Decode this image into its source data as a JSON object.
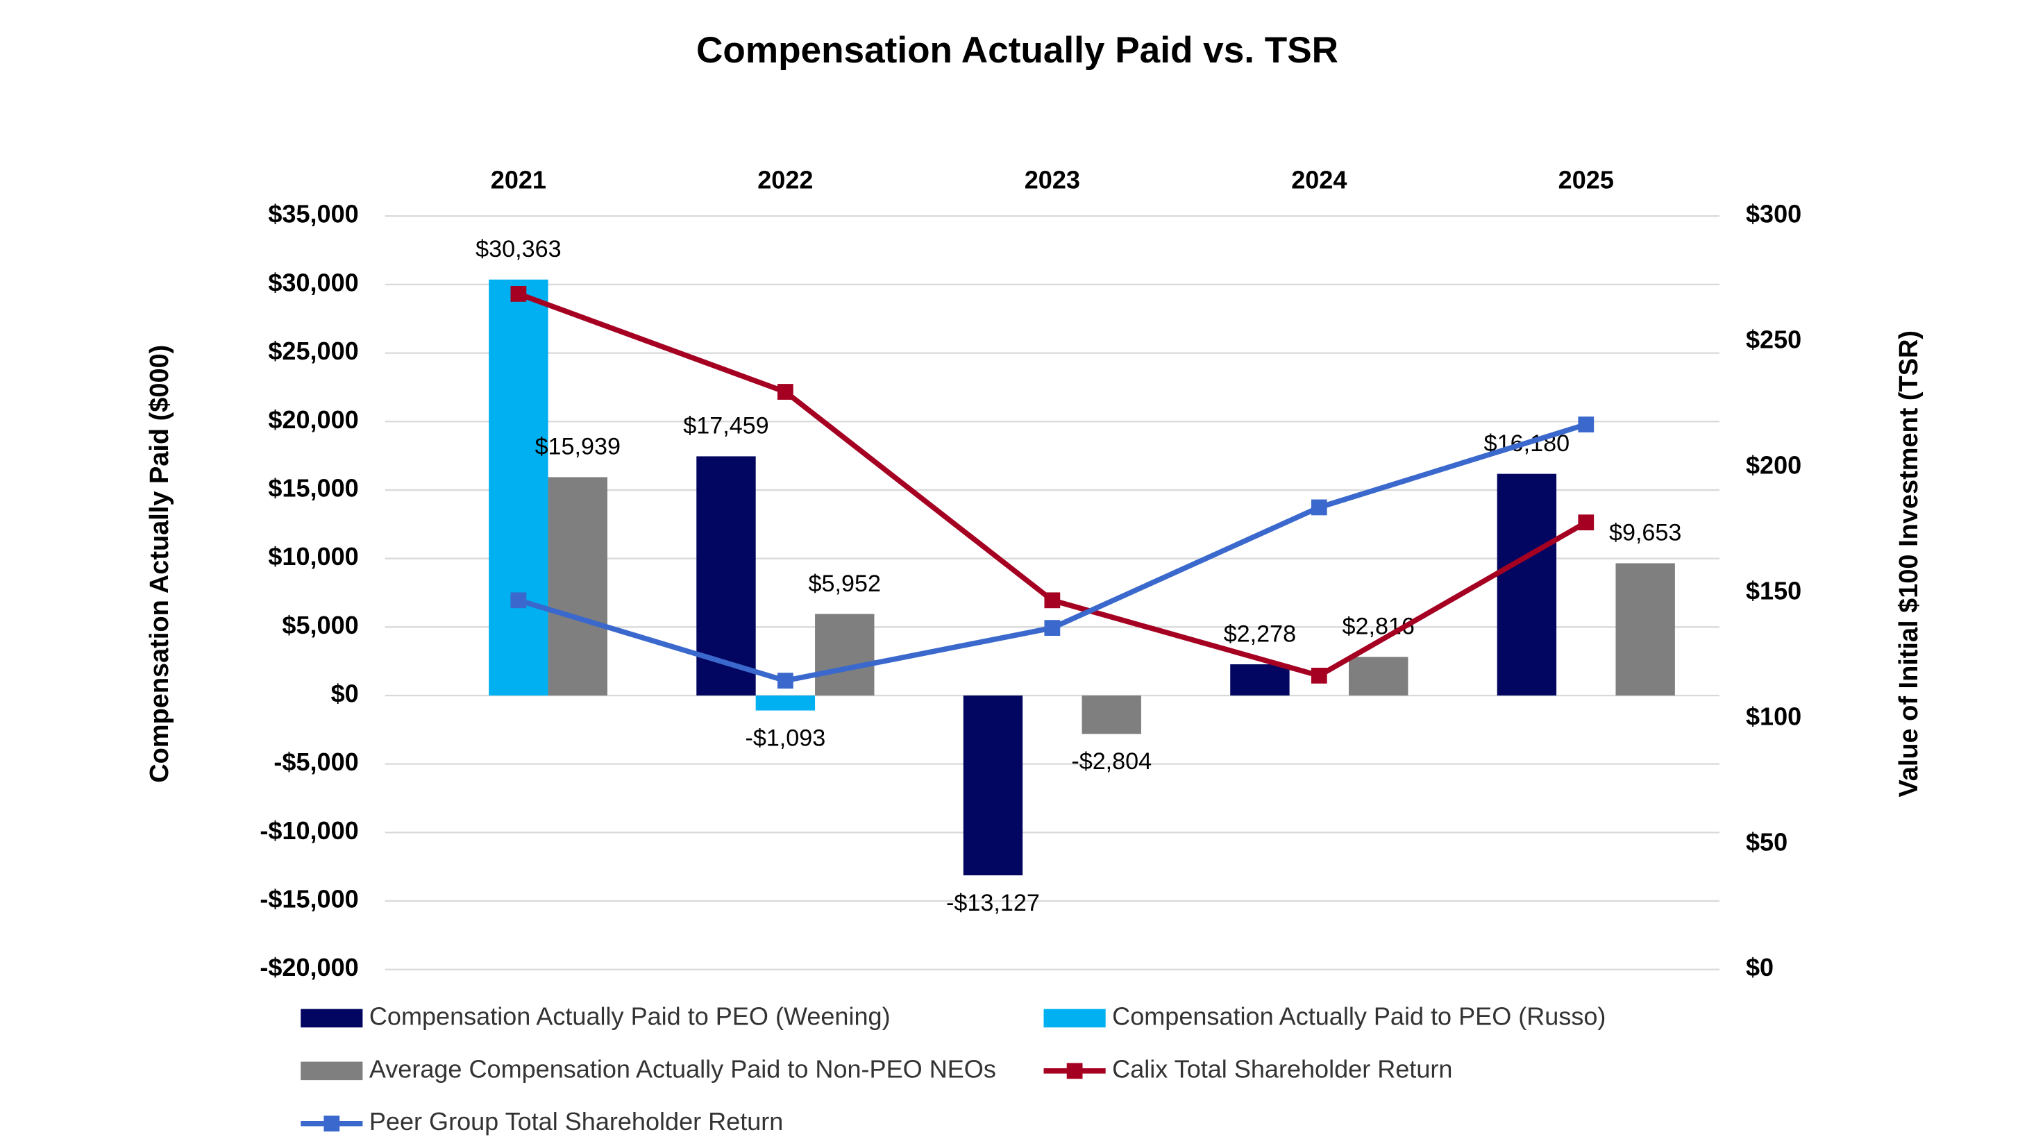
{
  "chart_data": {
    "type": "bar",
    "title": "Compensation Actually Paid vs. TSR",
    "y_label": "Compensation Actually Paid ($000)",
    "y2_label": "Value of Initial $100 Investment (TSR)",
    "categories": [
      "2021",
      "2022",
      "2023",
      "2024",
      "2025"
    ],
    "series": [
      {
        "name": "Compensation Actually Paid to PEO (Weening)",
        "type": "bar",
        "color": "#020660",
        "values": [
          null,
          17459,
          -13127,
          2278,
          16180
        ],
        "value_labels": [
          null,
          "$17,459",
          "-$13,127",
          "$2,278",
          "$16,180"
        ]
      },
      {
        "name": "Compensation Actually Paid to PEO (Russo)",
        "type": "bar",
        "color": "#00b0f0",
        "values": [
          30363,
          -1093,
          null,
          null,
          null
        ],
        "value_labels": [
          "$30,363",
          "-$1,093",
          null,
          null,
          null
        ]
      },
      {
        "name": "Average Compensation Actually Paid to Non-PEO NEOs",
        "type": "bar",
        "color": "#7f7f7f",
        "values": [
          15939,
          5952,
          -2804,
          2816,
          9653
        ],
        "value_labels": [
          "$15,939",
          "$5,952",
          "-$2,804",
          "$2,816",
          "$9,653"
        ]
      },
      {
        "name": "Calix Total Shareholder Return",
        "type": "line",
        "axis": "y2",
        "color": "#a50021",
        "values": [
          269,
          230,
          147,
          117,
          178
        ]
      },
      {
        "name": "Peer Group Total Shareholder Return",
        "type": "line",
        "axis": "y2",
        "color": "#3a68cc",
        "values": [
          147,
          115,
          136,
          184,
          217
        ]
      }
    ],
    "ylim": [
      -20000,
      35000
    ],
    "yticks": [
      {
        "value": -20000,
        "label": "-$20,000"
      },
      {
        "value": -15000,
        "label": "-$15,000"
      },
      {
        "value": -10000,
        "label": "-$10,000"
      },
      {
        "value": -5000,
        "label": "-$5,000"
      },
      {
        "value": 0,
        "label": "$0"
      },
      {
        "value": 5000,
        "label": "$5,000"
      },
      {
        "value": 10000,
        "label": "$10,000"
      },
      {
        "value": 15000,
        "label": "$15,000"
      },
      {
        "value": 20000,
        "label": "$20,000"
      },
      {
        "value": 25000,
        "label": "$25,000"
      },
      {
        "value": 30000,
        "label": "$30,000"
      },
      {
        "value": 35000,
        "label": "$35,000"
      }
    ],
    "y2lim": [
      0,
      300
    ],
    "y2ticks": [
      {
        "value": 0,
        "label": "$0"
      },
      {
        "value": 50,
        "label": "$50"
      },
      {
        "value": 100,
        "label": "$100"
      },
      {
        "value": 150,
        "label": "$150"
      },
      {
        "value": 200,
        "label": "$200"
      },
      {
        "value": 250,
        "label": "$250"
      },
      {
        "value": 300,
        "label": "$300"
      }
    ],
    "grid": true,
    "legend": "bottom"
  }
}
